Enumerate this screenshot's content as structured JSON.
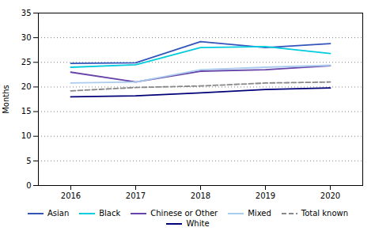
{
  "chart_data": {
    "type": "line",
    "ylabel": "Months",
    "x": [
      2016,
      2017,
      2018,
      2019,
      2020
    ],
    "xlim": [
      2015.5,
      2020.5
    ],
    "xticks": [
      2016,
      2017,
      2018,
      2019,
      2020
    ],
    "ylim": [
      0,
      35
    ],
    "yticks": [
      0,
      5,
      10,
      15,
      20,
      25,
      30,
      35
    ],
    "grid": true,
    "legend": "bottom",
    "series": [
      {
        "name": "Asian",
        "color": "#3355bb",
        "line_style": "solid",
        "values": [
          24.8,
          24.9,
          29.2,
          28.0,
          28.8
        ]
      },
      {
        "name": "Black",
        "color": "#00ccdd",
        "line_style": "solid",
        "values": [
          24.0,
          24.5,
          28.0,
          28.2,
          26.8
        ]
      },
      {
        "name": "Chinese or Other",
        "color": "#6644aa",
        "line_style": "solid",
        "values": [
          23.0,
          21.0,
          23.2,
          23.5,
          24.3
        ]
      },
      {
        "name": "Mixed",
        "color": "#aaccee",
        "line_style": "solid",
        "values": [
          20.8,
          21.0,
          23.5,
          24.0,
          24.4
        ]
      },
      {
        "name": "Total known",
        "color": "#888888",
        "line_style": "dashed",
        "values": [
          19.2,
          19.9,
          20.2,
          20.8,
          21.0
        ]
      },
      {
        "name": "White",
        "color": "#000077",
        "line_style": "solid",
        "values": [
          18.0,
          18.2,
          18.8,
          19.5,
          19.8
        ]
      }
    ]
  }
}
